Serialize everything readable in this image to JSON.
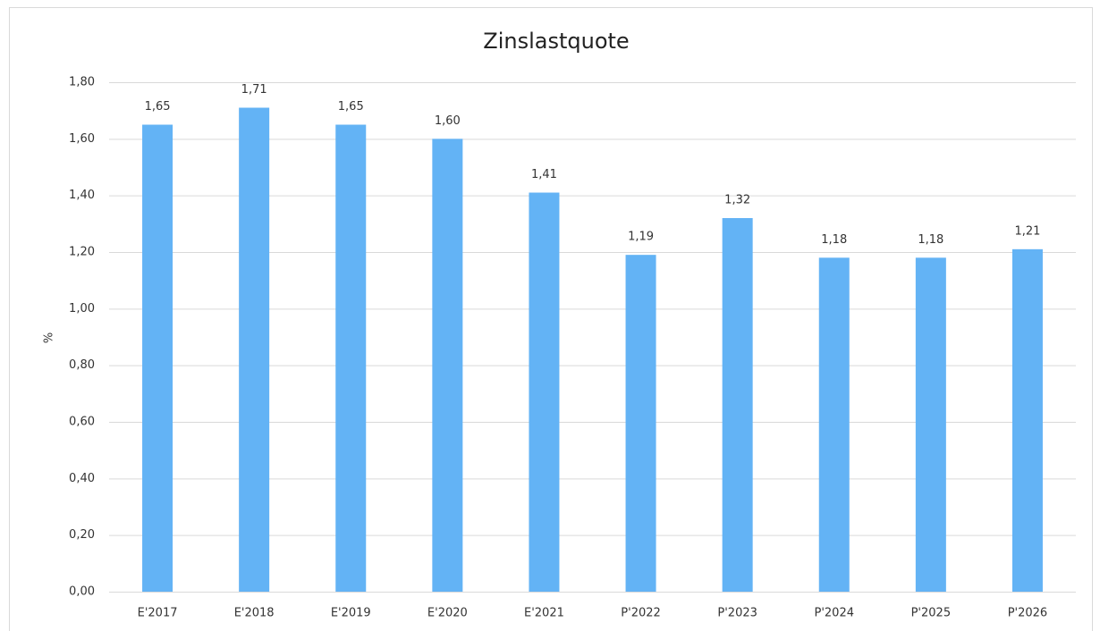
{
  "chart_data": {
    "type": "bar",
    "title": "Zinslastquote",
    "y_label": "%",
    "categories": [
      "E'2017",
      "E'2018",
      "E'2019",
      "E'2020",
      "E'2021",
      "P'2022",
      "P'2023",
      "P'2024",
      "P'2025",
      "P'2026"
    ],
    "values": [
      1.65,
      1.71,
      1.65,
      1.6,
      1.41,
      1.19,
      1.32,
      1.18,
      1.18,
      1.21
    ],
    "value_labels": [
      "1,65",
      "1,71",
      "1,65",
      "1,60",
      "1,41",
      "1,19",
      "1,32",
      "1,18",
      "1,18",
      "1,21"
    ],
    "color": "#63b3f5",
    "ylim": [
      0,
      1.8
    ],
    "yticks": [
      {
        "value": 0,
        "label": "0,00"
      },
      {
        "value": 0.2,
        "label": "0,20"
      },
      {
        "value": 0.4,
        "label": "0,40"
      },
      {
        "value": 0.6,
        "label": "0,60"
      },
      {
        "value": 0.8,
        "label": "0,80"
      },
      {
        "value": 1.0,
        "label": "1,00"
      },
      {
        "value": 1.2,
        "label": "1,20"
      },
      {
        "value": 1.4,
        "label": "1,40"
      },
      {
        "value": 1.6,
        "label": "1,60"
      },
      {
        "value": 1.8,
        "label": "1,80"
      }
    ],
    "grid": true
  }
}
